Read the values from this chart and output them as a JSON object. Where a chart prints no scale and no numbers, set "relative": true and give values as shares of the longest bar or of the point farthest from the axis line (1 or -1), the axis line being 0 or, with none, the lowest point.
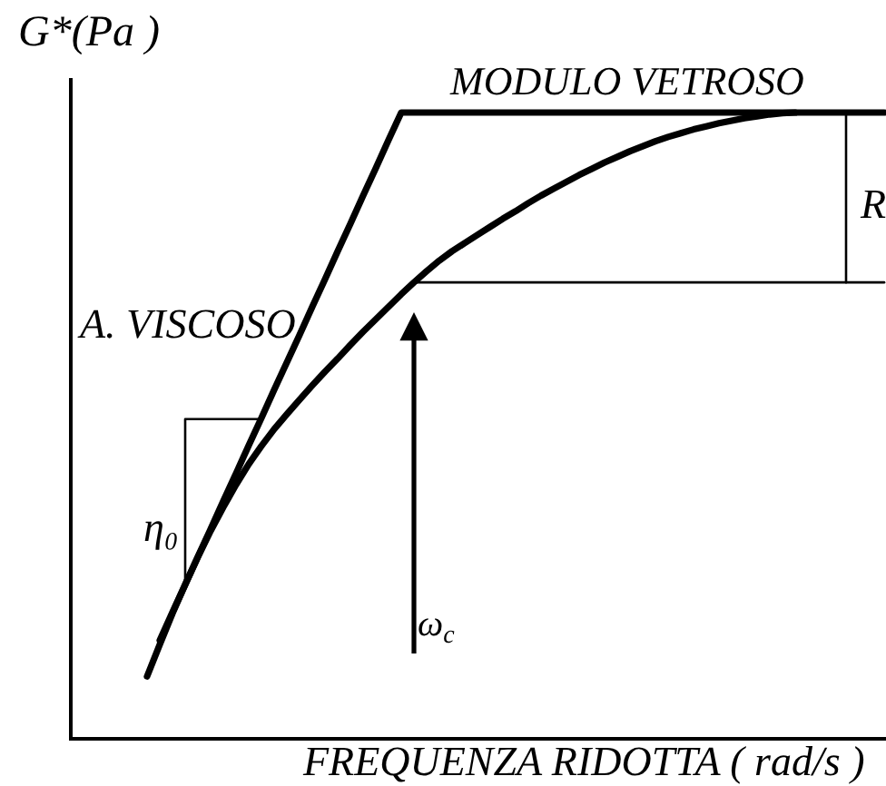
{
  "chart_data": {
    "type": "line",
    "relative": true,
    "xlabel": "FREQUENZA RIDOTTA ( rad/s )",
    "ylabel": "G*(Pa )",
    "annotations": [
      "MODULO VETROSO",
      "A. VISCOSO",
      "R",
      "η₀",
      "ω$_{c}$"
    ],
    "categories": [
      null,
      null,
      null,
      null,
      null,
      null,
      null,
      null,
      null,
      null,
      null,
      null,
      null,
      null,
      null,
      null,
      null,
      null,
      null,
      null,
      null,
      null,
      null,
      null,
      null,
      null,
      null,
      null,
      null,
      null,
      null,
      null,
      null,
      null,
      null,
      null,
      null,
      null,
      null,
      null,
      null,
      null,
      null,
      null,
      null,
      null,
      null,
      null,
      null,
      null,
      null,
      null,
      null,
      null,
      null,
      null,
      null,
      null,
      null
    ],
    "series": [
      {
        "type": "line",
        "color": "#000000",
        "values": [
          0.097,
          0.148,
          0.198,
          0.244,
          0.288,
          0.33,
          0.368,
          0.404,
          0.437,
          0.466,
          0.493,
          0.517,
          0.54,
          0.563,
          0.585,
          0.606,
          0.628,
          0.649,
          0.669,
          0.689,
          0.709,
          0.728,
          0.746,
          0.763,
          0.778,
          0.791,
          0.804,
          0.817,
          0.83,
          0.842,
          0.855,
          0.867,
          0.878,
          0.889,
          0.9,
          0.91,
          0.92,
          0.929,
          0.938,
          0.946,
          0.954,
          0.961,
          0.967,
          0.973,
          0.978,
          0.983,
          0.987,
          0.991,
          0.994,
          0.997,
          0.999,
          1.0,
          null,
          null,
          null,
          null,
          null,
          null,
          null
        ]
      },
      {
        "type": "line",
        "color": "#000000",
        "values": [
          null,
          0.155,
          0.2,
          0.244,
          0.289,
          0.333,
          0.378,
          0.422,
          0.467,
          0.511,
          0.556,
          0.6,
          0.644,
          0.689,
          0.733,
          0.778,
          0.822,
          0.867,
          0.911,
          0.956,
          1.0,
          1.0,
          1.0,
          1.0,
          1.0,
          1.0,
          1.0,
          1.0,
          1.0,
          1.0,
          1.0,
          1.0,
          1.0,
          1.0,
          1.0,
          1.0,
          1.0,
          1.0,
          1.0,
          1.0,
          1.0,
          1.0,
          1.0,
          1.0,
          1.0,
          1.0,
          1.0,
          1.0,
          1.0,
          1.0,
          1.0,
          1.0,
          1.0,
          1.0,
          1.0,
          1.0,
          1.0,
          1.0,
          1.0
        ]
      },
      {
        "type": "step",
        "color": "#000000",
        "values": [
          null,
          null,
          null,
          0.244,
          0.509,
          0.509,
          0.509,
          0.509,
          0.509,
          0.509,
          null,
          null,
          null,
          null,
          null,
          null,
          null,
          null,
          null,
          null,
          null,
          null,
          null,
          null,
          null,
          null,
          null,
          null,
          null,
          null,
          null,
          null,
          null,
          null,
          null,
          null,
          null,
          null,
          null,
          null,
          null,
          null,
          null,
          null,
          null,
          null,
          null,
          null,
          null,
          null,
          null,
          null,
          null,
          null,
          null,
          null,
          null,
          null,
          null
        ]
      },
      {
        "type": "step",
        "color": "#000000",
        "values": [
          null,
          null,
          null,
          null,
          null,
          null,
          null,
          null,
          null,
          null,
          null,
          null,
          null,
          null,
          null,
          null,
          null,
          null,
          null,
          null,
          null,
          0.728,
          0.728,
          0.728,
          0.728,
          0.728,
          0.728,
          0.728,
          0.728,
          0.728,
          0.728,
          0.728,
          0.728,
          0.728,
          0.728,
          0.728,
          0.728,
          0.728,
          0.728,
          0.728,
          0.728,
          0.728,
          0.728,
          0.728,
          0.728,
          0.728,
          0.728,
          0.728,
          0.728,
          0.728,
          0.728,
          0.728,
          0.728,
          0.728,
          0.728,
          1.0,
          null,
          null,
          null
        ]
      },
      {
        "type": "line",
        "color": "#000000",
        "values": [
          null,
          null,
          null,
          null,
          null,
          null,
          null,
          null,
          null,
          null,
          null,
          null,
          null,
          null,
          null,
          null,
          null,
          null,
          null,
          null,
          null,
          null,
          null,
          null,
          null,
          null,
          null,
          null,
          null,
          null,
          null,
          null,
          null,
          null,
          null,
          null,
          null,
          null,
          null,
          null,
          null,
          null,
          null,
          null,
          null,
          null,
          null,
          null,
          null,
          null,
          null,
          null,
          null,
          null,
          null,
          0.728,
          0.728,
          0.728,
          0.728
        ]
      }
    ]
  }
}
